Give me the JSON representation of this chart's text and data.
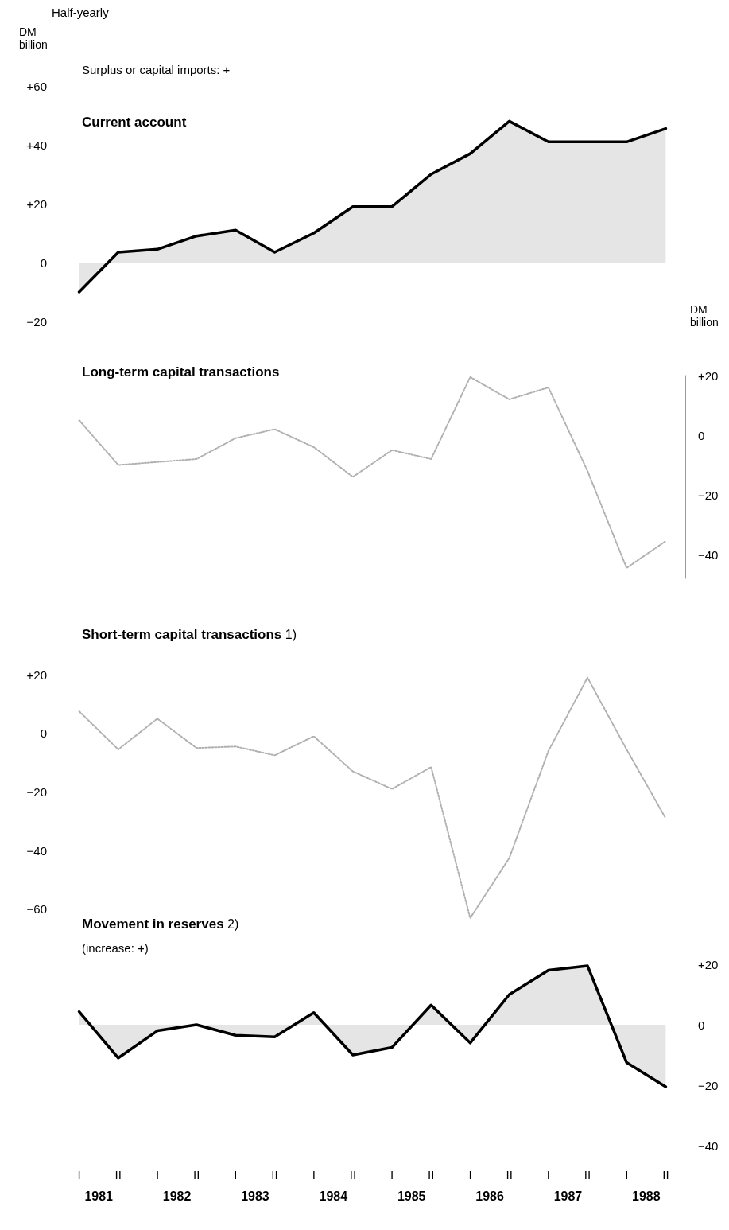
{
  "chart_data": [
    {
      "type": "area",
      "title": "Current account",
      "subtitle": "Surplus or capital imports: +",
      "ylabel": "DM billion",
      "annotations": [
        "Half-yearly"
      ],
      "categories": [
        "I",
        "II",
        "I",
        "II",
        "I",
        "II",
        "I",
        "II",
        "I",
        "II",
        "I",
        "II",
        "I",
        "II",
        "I",
        "II"
      ],
      "ylim": [
        -20,
        60
      ],
      "yticks": [
        {
          "value": 60,
          "label": "+60"
        },
        {
          "value": 40,
          "label": "+40"
        },
        {
          "value": 20,
          "label": "+20"
        },
        0,
        {
          "value": -20,
          "label": "−20"
        }
      ],
      "tick_labels": "y",
      "grid": false,
      "marker": "none",
      "line_style": "solid",
      "series": [
        {
          "color": "#000000",
          "values": [
            -10,
            3.5,
            4.5,
            9,
            11,
            3.5,
            10,
            19,
            19,
            30,
            37,
            48,
            41,
            41,
            41,
            45.5
          ]
        }
      ]
    },
    {
      "type": "line",
      "title": "Long-term capital transactions",
      "y2label": "DM billion",
      "categories": [
        "I",
        "II",
        "I",
        "II",
        "I",
        "II",
        "I",
        "II",
        "I",
        "II",
        "I",
        "II",
        "I",
        "II",
        "I",
        "II"
      ],
      "y2lim": [
        -48,
        20
      ],
      "y2ticks": [
        {
          "value": 20,
          "label": "+20"
        },
        0,
        {
          "value": -20,
          "label": "−20"
        },
        {
          "value": -40,
          "label": "−40"
        }
      ],
      "tick_labels": "y",
      "grid": false,
      "marker": "none",
      "line_style": "dotted",
      "series": [
        {
          "color": "#b0b0b0",
          "axis": "y2",
          "values": [
            5,
            -10,
            -9,
            -8,
            -1,
            2,
            -4,
            -14,
            -5,
            -8,
            19.5,
            12,
            16,
            -12,
            -44.5,
            -35.5
          ]
        }
      ]
    },
    {
      "type": "line",
      "title": "Short-term capital transactions 1)",
      "categories": [
        "I",
        "II",
        "I",
        "II",
        "I",
        "II",
        "I",
        "II",
        "I",
        "II",
        "I",
        "II",
        "I",
        "II",
        "I",
        "II"
      ],
      "ylim": [
        -66,
        20
      ],
      "yticks": [
        {
          "value": 20,
          "label": "+20"
        },
        0,
        {
          "value": -20,
          "label": "−20"
        },
        {
          "value": -40,
          "label": "−40"
        },
        {
          "value": -60,
          "label": "−60"
        }
      ],
      "tick_labels": "y",
      "grid": false,
      "marker": "none",
      "line_style": "dotted",
      "series": [
        {
          "color": "#b0b0b0",
          "values": [
            7.5,
            -5.5,
            5,
            -5,
            -4.5,
            -7.5,
            -1,
            -13,
            -19,
            -11.5,
            -63,
            -42.5,
            -6,
            19,
            -5.5,
            -29
          ]
        }
      ]
    },
    {
      "type": "area",
      "title": "Movement in reserves 2)",
      "subtitle": "(increase: +)",
      "annotations": [
        "1981",
        "1982",
        "1983",
        "1984",
        "1985",
        "1986",
        "1987",
        "1988"
      ],
      "categories": [
        "I",
        "II",
        "I",
        "II",
        "I",
        "II",
        "I",
        "II",
        "I",
        "II",
        "I",
        "II",
        "I",
        "II",
        "I",
        "II"
      ],
      "y2lim": [
        -40,
        20
      ],
      "y2ticks": [
        {
          "value": 20,
          "label": "+20"
        },
        0,
        {
          "value": -20,
          "label": "−20"
        },
        {
          "value": -40,
          "label": "−40"
        }
      ],
      "grid": false,
      "marker": "none",
      "line_style": "solid",
      "series": [
        {
          "color": "#000000",
          "axis": "y2",
          "values": [
            4.3,
            -11,
            -2,
            0,
            -3.5,
            -4,
            4,
            -10,
            -7.5,
            6.5,
            -6,
            10,
            18,
            19.5,
            -12.5,
            -20.5
          ]
        }
      ]
    }
  ]
}
